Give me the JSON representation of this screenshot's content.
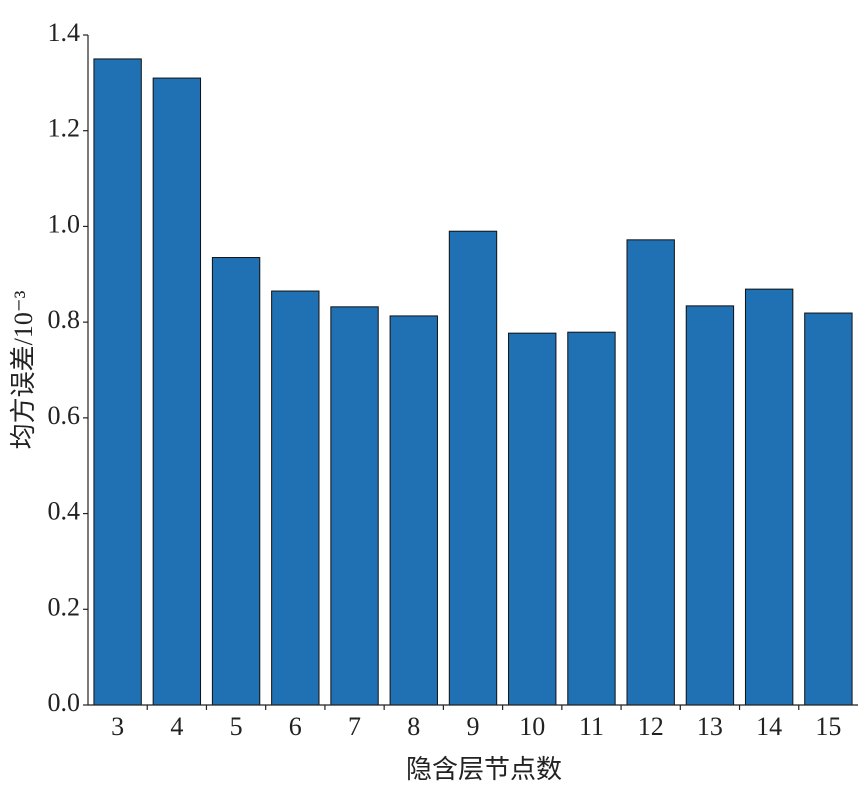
{
  "chart_data": {
    "type": "bar",
    "xlabel": "隐含层节点数",
    "ylabel": "均方误差/10⁻³",
    "categories": [
      3,
      4,
      5,
      6,
      7,
      8,
      9,
      10,
      11,
      12,
      13,
      14,
      15
    ],
    "values": [
      1.35,
      1.31,
      0.935,
      0.865,
      0.832,
      0.813,
      0.99,
      0.777,
      0.779,
      0.972,
      0.834,
      0.869,
      0.819
    ],
    "color": "#2070b4",
    "ylim": [
      0,
      1.4
    ],
    "yticks": [
      {
        "value": 0,
        "label": "0.0"
      },
      0.2,
      0.4,
      0.6,
      0.8,
      {
        "value": 1,
        "label": "1.0"
      },
      1.2,
      1.4
    ]
  }
}
